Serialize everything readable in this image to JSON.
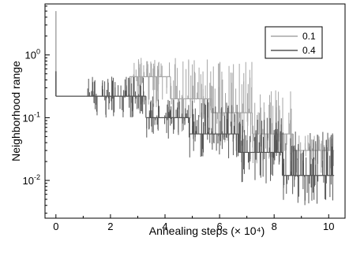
{
  "chart_data": {
    "type": "line",
    "xlabel": "Annealing steps (× 10⁴)",
    "ylabel": "Neighborhood range",
    "x_scale": "linear",
    "y_scale": "log",
    "xlim": [
      -0.4,
      10.6
    ],
    "ylim": [
      0.0025,
      6.5
    ],
    "x_ticks": [
      0,
      2,
      4,
      6,
      8,
      10
    ],
    "y_ticks": [
      {
        "value": 1,
        "base": "10",
        "exp": "0"
      },
      {
        "value": 0.1,
        "base": "10",
        "exp": "-1"
      },
      {
        "value": 0.01,
        "base": "10",
        "exp": "-2"
      }
    ],
    "grid": false,
    "legend_position": "top-right",
    "series": [
      {
        "name": "0.1",
        "color": "#a6a6a6",
        "start_spike": 5.0,
        "levels": [
          {
            "x0": 0.0,
            "x1": 2.7,
            "y": 0.22
          },
          {
            "x0": 2.7,
            "x1": 4.2,
            "y": 0.45
          },
          {
            "x0": 4.2,
            "x1": 5.7,
            "y": 0.2
          },
          {
            "x0": 5.7,
            "x1": 7.2,
            "y": 0.12
          },
          {
            "x0": 7.2,
            "x1": 8.7,
            "y": 0.055
          },
          {
            "x0": 8.7,
            "x1": 10.2,
            "y": 0.03
          }
        ],
        "spike_low": [
          0.2,
          0.09,
          0.055,
          0.035,
          0.018,
          0.012
        ],
        "spike_high": [
          0.5,
          0.9,
          0.9,
          0.9,
          0.3,
          0.055
        ]
      },
      {
        "name": "0.4",
        "color": "#555555",
        "start_spike": 0.55,
        "levels": [
          {
            "x0": 0.0,
            "x1": 1.1,
            "y": 0.22
          },
          {
            "x0": 1.1,
            "x1": 3.3,
            "y": 0.22
          },
          {
            "x0": 3.3,
            "x1": 4.9,
            "y": 0.1
          },
          {
            "x0": 4.9,
            "x1": 6.7,
            "y": 0.055
          },
          {
            "x0": 6.7,
            "x1": 8.3,
            "y": 0.028
          },
          {
            "x0": 8.3,
            "x1": 10.2,
            "y": 0.012
          }
        ],
        "spike_low": [
          0.22,
          0.1,
          0.045,
          0.022,
          0.008,
          0.0035
        ],
        "spike_high": [
          0.22,
          0.45,
          0.22,
          0.2,
          0.1,
          0.06
        ]
      }
    ]
  }
}
